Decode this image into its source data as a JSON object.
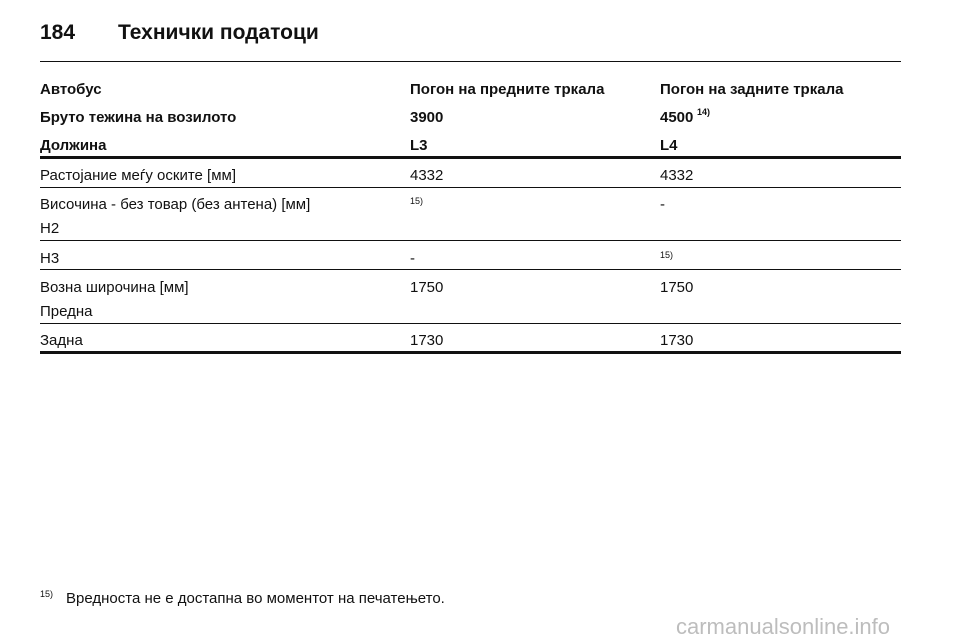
{
  "header": {
    "page_number": "184",
    "title": "Технички податоци"
  },
  "table": {
    "head": [
      [
        "Автобус",
        "Погон на предните тркала",
        "Погон на задните тркала"
      ],
      [
        "Бруто тежина на возилото",
        "3900",
        "4500"
      ],
      [
        "Должина",
        "L3",
        "L4"
      ]
    ],
    "head_note": "14)",
    "rows": [
      {
        "label": "Растојание меѓу оските [мм]",
        "cells": [
          "4332",
          "4332"
        ]
      },
      {
        "label": "Височина - без товар (без антена) [мм]",
        "sublabel": "H2",
        "cells": [
          "15)",
          "-"
        ]
      },
      {
        "label": "H3",
        "cells": [
          "-",
          "15)"
        ]
      },
      {
        "label": "Возна широчина [мм]",
        "sublabel": "Предна",
        "cells": [
          "1750",
          "1750"
        ]
      },
      {
        "label": "Задна",
        "cells": [
          "1730",
          "1730"
        ]
      }
    ]
  },
  "footnote": {
    "marker": "15)",
    "text": "Вредноста не е достапна во моментот на печатењето."
  },
  "watermark": "carmanualsonline.info"
}
